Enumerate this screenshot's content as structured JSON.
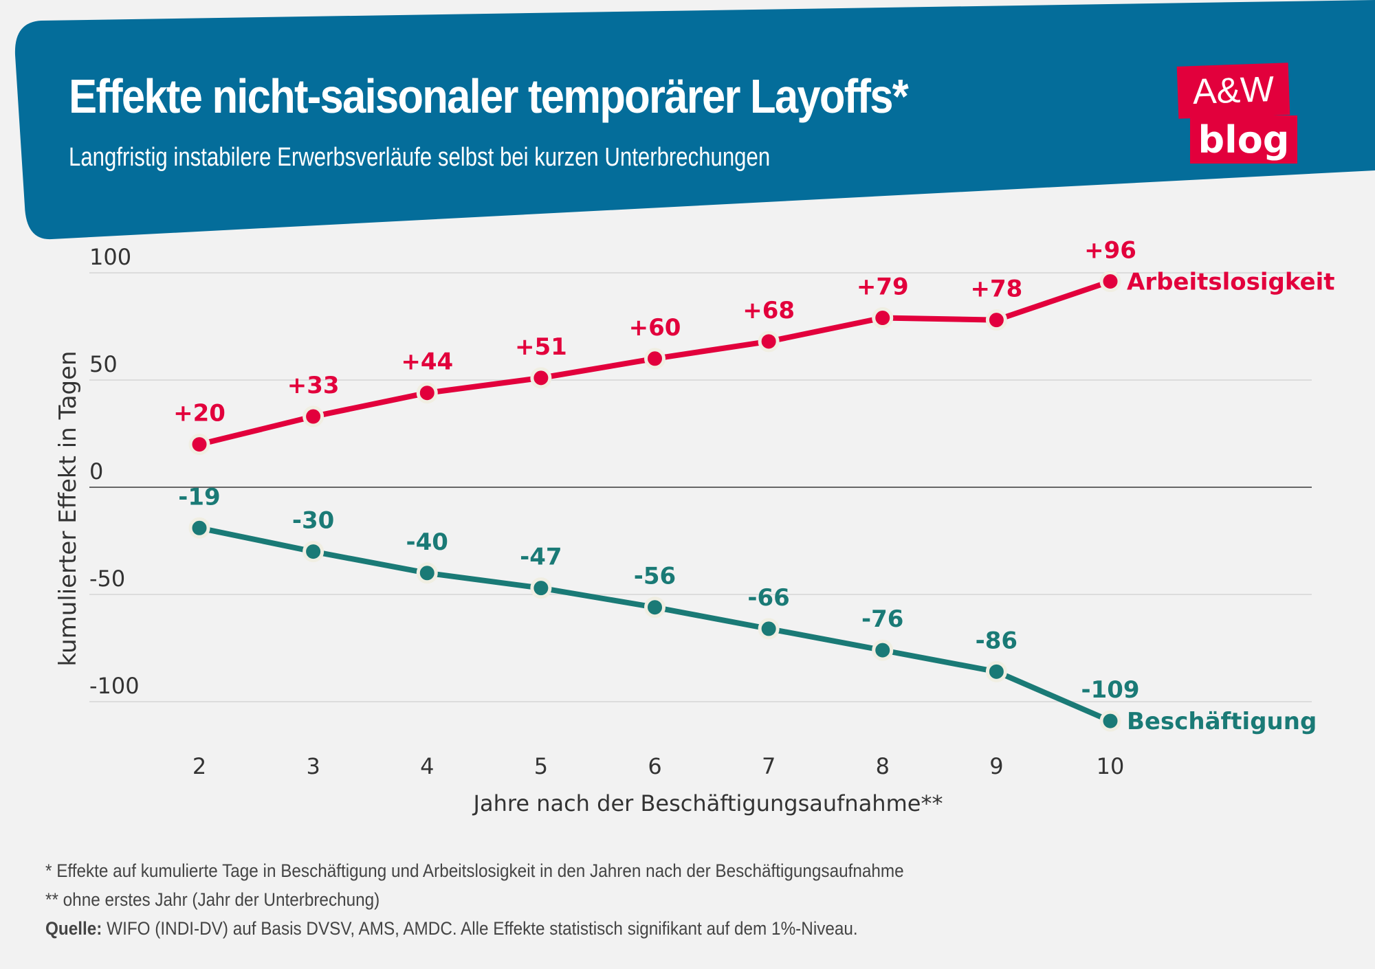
{
  "header": {
    "title": "Effekte nicht-saisonaler temporärer Layoffs*",
    "subtitle": "Langfristig instabilere Erwerbsverläufe selbst bei kurzen Unterbrechungen",
    "logo_line1": "A&W",
    "logo_line2": "blog",
    "banner_color": "#046d9a",
    "logo_color": "#e2003c"
  },
  "footnotes": {
    "note1": "* Effekte auf kumulierte Tage in Beschäftigung und Arbeitslosigkeit in den Jahren nach der Beschäftigungsaufnahme",
    "note2": " ** ohne erstes Jahr (Jahr der Unterbrechung)",
    "source_label": "Quelle:",
    "source_text": " WIFO (INDI-DV) auf Basis DVSV, AMS, AMDC. Alle Effekte statistisch signifikant auf dem 1%-Niveau."
  },
  "chart_data": {
    "type": "line",
    "title": "Effekte nicht-saisonaler temporärer Layoffs*",
    "subtitle": "Langfristig instabilere Erwerbsverläufe selbst bei kurzen Unterbrechungen",
    "xlabel": "Jahre nach der Beschäftigungsaufnahme**",
    "ylabel": "kumulierter Effekt in Tagen",
    "x": [
      2,
      3,
      4,
      5,
      6,
      7,
      8,
      9,
      10
    ],
    "ylim": [
      -100,
      100
    ],
    "yticks": [
      100,
      50,
      0,
      -50,
      -100
    ],
    "grid": true,
    "legend": "direct labels at line ends (right)",
    "series": [
      {
        "name": "Arbeitslosigkeit",
        "color": "#e2003c",
        "values": [
          20,
          33,
          44,
          51,
          60,
          68,
          79,
          78,
          96
        ],
        "labels": [
          "+20",
          "+33",
          "+44",
          "+51",
          "+60",
          "+68",
          "+79",
          "+78",
          "+96"
        ]
      },
      {
        "name": "Beschäftigung",
        "color": "#1a7a76",
        "values": [
          -19,
          -30,
          -40,
          -47,
          -56,
          -66,
          -76,
          -86,
          -109
        ],
        "labels": [
          "-19",
          "-30",
          "-40",
          "-47",
          "-56",
          "-66",
          "-76",
          "-86",
          "-109"
        ]
      }
    ]
  }
}
